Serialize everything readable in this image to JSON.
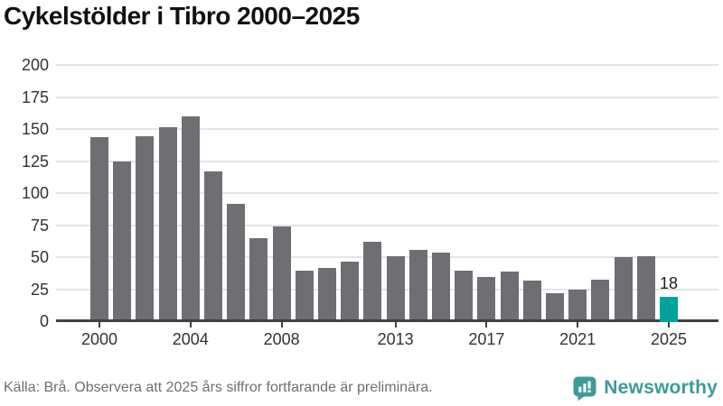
{
  "title": "Cykelstölder i Tibro 2000–2025",
  "footer": {
    "source_text": "Källa: Brå. Observera att 2025 års siffror fortfarande är preliminära."
  },
  "branding": {
    "logo_text": "Newsworthy",
    "logo_icon": "newsworthy-speech-bubble-bar-chart-icon"
  },
  "colors": {
    "title": "#111111",
    "bar": "#6e6e73",
    "barhl": "#00a29b",
    "grid": "#e4e4e4",
    "axis": "#404040",
    "ticklabel": "#333333",
    "footer": "#6f6f6f",
    "brand": "#3d9b97"
  },
  "chart_data": {
    "type": "bar",
    "title": "Cykelstölder i Tibro 2000–2025",
    "categories": [
      2000,
      2001,
      2002,
      2003,
      2004,
      2005,
      2006,
      2007,
      2008,
      2009,
      2010,
      2011,
      2012,
      2013,
      2014,
      2015,
      2016,
      2017,
      2018,
      2019,
      2020,
      2021,
      2022,
      2023,
      2024,
      2025
    ],
    "values": [
      143,
      124,
      144,
      151,
      159,
      116,
      91,
      64,
      73,
      39,
      41,
      46,
      61,
      50,
      55,
      53,
      39,
      34,
      38,
      31,
      21,
      24,
      32,
      49,
      50,
      18
    ],
    "highlight": {
      "year": 2025,
      "value": 18,
      "label": "18"
    },
    "xlabel": "",
    "ylabel": "",
    "ylim": [
      0,
      200
    ],
    "yticks": [
      0,
      25,
      50,
      75,
      100,
      125,
      150,
      175,
      200
    ],
    "xticks": [
      2000,
      2004,
      2008,
      2013,
      2017,
      2021,
      2025
    ],
    "grid": "horizontal",
    "legend": "none"
  }
}
